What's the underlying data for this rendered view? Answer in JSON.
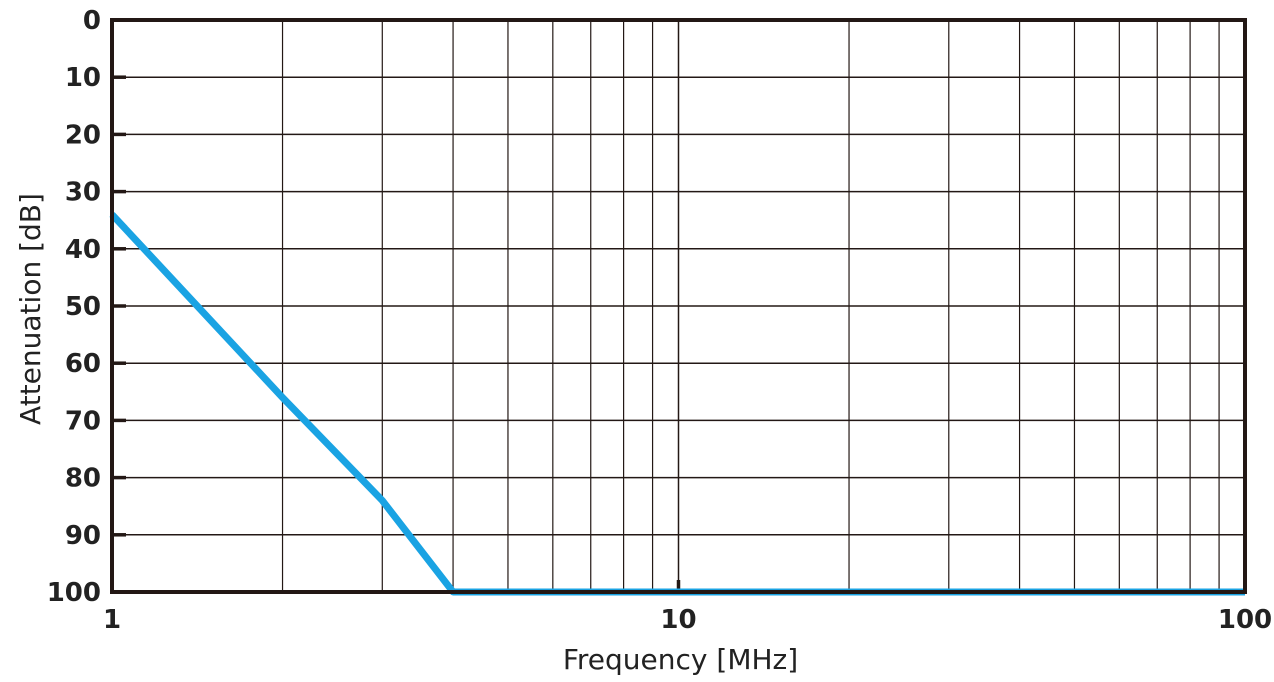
{
  "chart_data": {
    "type": "line",
    "title": "",
    "xlabel": "Frequency [MHz]",
    "ylabel": "Attenuation [dB]",
    "x_scale": "log",
    "xlim": [
      1,
      100
    ],
    "ylim": [
      0,
      100
    ],
    "y_inverted": true,
    "x_tick_labels": [
      "1",
      "10",
      "100"
    ],
    "y_tick_labels": [
      "0",
      "10",
      "20",
      "30",
      "40",
      "50",
      "60",
      "70",
      "80",
      "90",
      "100"
    ],
    "grid": true,
    "series": [
      {
        "color": "#1aa3e3",
        "x": [
          1,
          2,
          3,
          4,
          100
        ],
        "y": [
          34,
          66,
          84,
          100,
          100
        ]
      }
    ]
  }
}
